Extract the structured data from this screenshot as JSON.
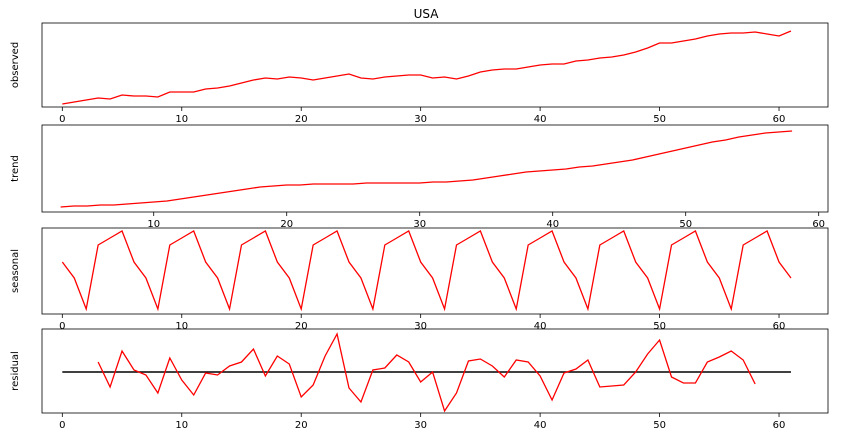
{
  "chart_data": [
    {
      "type": "line",
      "title": "USA",
      "ylabel": "observed",
      "color": "#ff0000",
      "x": [
        0,
        1,
        2,
        3,
        4,
        5,
        6,
        7,
        8,
        9,
        10,
        11,
        12,
        13,
        14,
        15,
        16,
        17,
        18,
        19,
        20,
        21,
        22,
        23,
        24,
        25,
        26,
        27,
        28,
        29,
        30,
        31,
        32,
        33,
        34,
        35,
        36,
        37,
        38,
        39,
        40,
        41,
        42,
        43,
        44,
        45,
        46,
        47,
        48,
        49,
        50,
        51,
        52,
        53,
        54,
        55,
        56,
        57,
        58,
        59,
        60,
        61
      ],
      "values": [
        3,
        5,
        7,
        9,
        8,
        12,
        11,
        11,
        10,
        15,
        15,
        15,
        18,
        19,
        21,
        24,
        27,
        29,
        28,
        30,
        29,
        27,
        29,
        31,
        33,
        29,
        28,
        30,
        31,
        32,
        32,
        29,
        30,
        28,
        31,
        35,
        37,
        38,
        38,
        40,
        42,
        43,
        43,
        46,
        47,
        49,
        50,
        52,
        55,
        59,
        64,
        64,
        66,
        68,
        71,
        73,
        74,
        74,
        75,
        73,
        71,
        76
      ],
      "xlim": [
        -1.7,
        64.1
      ],
      "xticks": [
        0,
        10,
        20,
        30,
        40,
        50,
        60
      ],
      "ylim": [
        0,
        84
      ]
    },
    {
      "type": "line",
      "ylabel": "trend",
      "color": "#ff0000",
      "x": [
        3,
        4,
        5,
        6,
        7,
        8,
        9,
        10,
        11,
        12,
        13,
        14,
        15,
        16,
        17,
        18,
        19,
        20,
        21,
        22,
        23,
        24,
        25,
        26,
        27,
        28,
        29,
        30,
        31,
        32,
        33,
        34,
        35,
        36,
        37,
        38,
        39,
        40,
        41,
        42,
        43,
        44,
        45,
        46,
        47,
        48,
        49,
        50,
        51,
        52,
        53,
        54,
        55,
        56,
        57,
        58
      ],
      "values": [
        5,
        6,
        6,
        7,
        7,
        8,
        9,
        10,
        11,
        13,
        15,
        17,
        19,
        21,
        23,
        25,
        26,
        27,
        27,
        28,
        28,
        28,
        28,
        29,
        29,
        29,
        29,
        29,
        30,
        30,
        31,
        32,
        34,
        36,
        38,
        40,
        41,
        42,
        43,
        45,
        46,
        48,
        50,
        52,
        55,
        58,
        61,
        64,
        67,
        70,
        72,
        75,
        77,
        79,
        80,
        81
      ],
      "xlim": [
        1.6,
        60.7
      ],
      "xticks": [
        10,
        20,
        30,
        40,
        50,
        60
      ],
      "ylim": [
        0,
        87
      ]
    },
    {
      "type": "line",
      "ylabel": "seasonal",
      "color": "#ff0000",
      "x": [
        0,
        1,
        2,
        3,
        4,
        5,
        6,
        7,
        8,
        9,
        10,
        11,
        12,
        13,
        14,
        15,
        16,
        17,
        18,
        19,
        20,
        21,
        22,
        23,
        24,
        25,
        26,
        27,
        28,
        29,
        30,
        31,
        32,
        33,
        34,
        35,
        36,
        37,
        38,
        39,
        40,
        41,
        42,
        43,
        44,
        45,
        46,
        47,
        48,
        49,
        50,
        51,
        52,
        53,
        54,
        55,
        56,
        57,
        58,
        59,
        60,
        61
      ],
      "values": [
        52,
        36,
        5,
        69,
        76,
        83,
        52,
        36,
        5,
        69,
        76,
        83,
        52,
        36,
        5,
        69,
        76,
        83,
        52,
        36,
        5,
        69,
        76,
        83,
        52,
        36,
        5,
        69,
        76,
        83,
        52,
        36,
        5,
        69,
        76,
        83,
        52,
        36,
        5,
        69,
        76,
        83,
        52,
        36,
        5,
        69,
        76,
        83,
        52,
        36,
        5,
        69,
        76,
        83,
        52,
        36,
        5,
        69,
        76,
        83,
        52,
        36
      ],
      "xlim": [
        -1.7,
        64.1
      ],
      "xticks": [
        0,
        10,
        20,
        30,
        40,
        50,
        60
      ],
      "ylim": [
        0,
        86
      ]
    },
    {
      "type": "line",
      "ylabel": "residual",
      "color": "#ff0000",
      "x": [
        3,
        4,
        5,
        6,
        7,
        8,
        9,
        10,
        11,
        12,
        13,
        14,
        15,
        16,
        17,
        18,
        19,
        20,
        21,
        22,
        23,
        24,
        25,
        26,
        27,
        28,
        29,
        30,
        31,
        32,
        33,
        34,
        35,
        36,
        37,
        38,
        39,
        40,
        41,
        42,
        43,
        44,
        45,
        46,
        47,
        48,
        49,
        50,
        51,
        52,
        53,
        54,
        55,
        56,
        57,
        58
      ],
      "values": [
        10,
        -15,
        21,
        2,
        -3,
        -21,
        14,
        -8,
        -23,
        -1,
        -3,
        6,
        10,
        23,
        -4,
        16,
        8,
        -25,
        -13,
        16,
        38,
        -16,
        -30,
        2,
        4,
        17,
        10,
        -10,
        0,
        -39,
        -21,
        11,
        13,
        6,
        -5,
        12,
        10,
        -4,
        -28,
        -1,
        3,
        12,
        -15,
        -14,
        -13,
        0,
        18,
        32,
        -5,
        -11,
        -11,
        10,
        15,
        21,
        12,
        -12
      ],
      "baseline": {
        "x": [
          0,
          61
        ],
        "values": [
          0,
          0
        ],
        "color": "#000000"
      },
      "xlim": [
        -1.7,
        64.1
      ],
      "xticks": [
        0,
        10,
        20,
        30,
        40,
        50,
        60
      ],
      "ylim": [
        -41,
        43
      ]
    }
  ]
}
